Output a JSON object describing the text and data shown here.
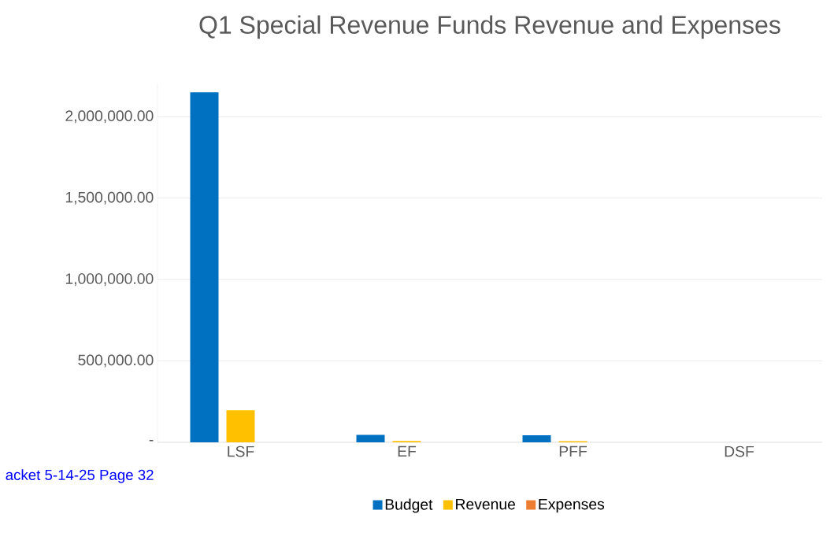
{
  "chart_data": {
    "type": "bar",
    "title": "Q1 Special Revenue Funds Revenue and Expenses",
    "categories": [
      "LSF",
      "EF",
      "PFF",
      "DSF"
    ],
    "series": [
      {
        "name": "Budget",
        "color": "#0070c0",
        "values": [
          2150000,
          46000,
          43000,
          0
        ]
      },
      {
        "name": "Revenue",
        "color": "#ffc000",
        "values": [
          197000,
          8000,
          7000,
          0
        ]
      },
      {
        "name": "Expenses",
        "color": "#ed7d31",
        "values": [
          0,
          0,
          0,
          0
        ]
      }
    ],
    "yticks": [
      {
        "value": 0,
        "label": "-"
      },
      {
        "value": 500000,
        "label": "500,000.00"
      },
      {
        "value": 1000000,
        "label": "1,000,000.00"
      },
      {
        "value": 1500000,
        "label": "1,500,000.00"
      },
      {
        "value": 2000000,
        "label": "2,000,000.00"
      }
    ],
    "ylim": [
      0,
      2200000
    ],
    "grid": "y",
    "legend": "bottom",
    "annotations": [
      "acket 5-14-25 Page 32"
    ]
  }
}
